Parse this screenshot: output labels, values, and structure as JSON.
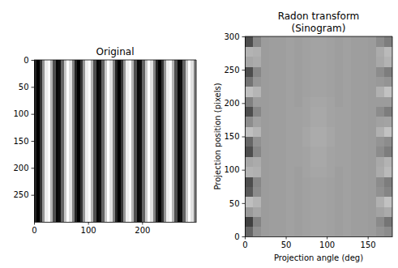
{
  "chart_data": [
    {
      "type": "heatmap",
      "title": "Original",
      "color": "gray",
      "zlim": [
        0,
        1
      ],
      "xlim": [
        0,
        300
      ],
      "ylim": [
        300,
        0
      ],
      "xticks": [
        0,
        100,
        200
      ],
      "yticks": [
        0,
        50,
        100,
        150,
        200,
        250
      ],
      "cells": [
        [
          0.14,
          0.0,
          0.2,
          0.59,
          0.93,
          0.98,
          0.71,
          0.31,
          0.03,
          0.06,
          0.39,
          0.79,
          1.0,
          0.88,
          0.51,
          0.14,
          0.0,
          0.2,
          0.59,
          0.93,
          0.98,
          0.71,
          0.31,
          0.03,
          0.06,
          0.39,
          0.79,
          1.0,
          0.88,
          0.51,
          0.14,
          0.0,
          0.2,
          0.59,
          0.93,
          0.98,
          0.71,
          0.31,
          0.03,
          0.06,
          0.39,
          0.79,
          1.0,
          0.88,
          0.51,
          0.14,
          0.0,
          0.2,
          0.59,
          0.93,
          0.98,
          0.71,
          0.31,
          0.03,
          0.06,
          0.39,
          0.79,
          1.0,
          0.88,
          0.51
        ]
      ]
    },
    {
      "type": "heatmap",
      "title": "Radon transform\n(Sinogram)",
      "color": "gray",
      "zlim": [
        0,
        1
      ],
      "xlabel": "Projection angle (deg)",
      "ylabel": "Projection position (pixels)",
      "xlim": [
        0,
        180
      ],
      "ylim": [
        0,
        300
      ],
      "xticks": [
        0,
        50,
        100,
        150
      ],
      "yticks": [
        0,
        50,
        100,
        150,
        200,
        250,
        300
      ],
      "cells": [
        [
          0.4,
          0.57,
          0.61,
          0.62,
          0.62,
          0.63,
          0.62,
          0.63,
          0.64,
          0.64,
          0.63,
          0.62,
          0.63,
          0.62,
          0.62,
          0.61,
          0.58,
          0.55
        ],
        [
          0.25,
          0.51,
          0.61,
          0.62,
          0.62,
          0.63,
          0.62,
          0.63,
          0.64,
          0.64,
          0.63,
          0.62,
          0.63,
          0.62,
          0.62,
          0.61,
          0.54,
          0.46
        ],
        [
          0.6,
          0.65,
          0.61,
          0.62,
          0.62,
          0.63,
          0.62,
          0.63,
          0.64,
          0.64,
          0.63,
          0.62,
          0.63,
          0.62,
          0.62,
          0.61,
          0.64,
          0.67
        ],
        [
          0.75,
          0.71,
          0.61,
          0.62,
          0.62,
          0.63,
          0.62,
          0.63,
          0.64,
          0.64,
          0.63,
          0.62,
          0.63,
          0.62,
          0.62,
          0.61,
          0.69,
          0.76
        ],
        [
          0.35,
          0.55,
          0.61,
          0.62,
          0.62,
          0.63,
          0.62,
          0.63,
          0.64,
          0.64,
          0.63,
          0.62,
          0.63,
          0.62,
          0.62,
          0.61,
          0.57,
          0.52
        ],
        [
          0.3,
          0.53,
          0.61,
          0.62,
          0.62,
          0.63,
          0.62,
          0.63,
          0.64,
          0.64,
          0.63,
          0.62,
          0.63,
          0.62,
          0.62,
          0.61,
          0.55,
          0.49
        ],
        [
          0.7,
          0.69,
          0.61,
          0.62,
          0.62,
          0.63,
          0.62,
          0.64,
          0.65,
          0.65,
          0.64,
          0.62,
          0.63,
          0.62,
          0.62,
          0.61,
          0.67,
          0.73
        ],
        [
          0.65,
          0.67,
          0.61,
          0.62,
          0.62,
          0.63,
          0.63,
          0.64,
          0.66,
          0.66,
          0.64,
          0.63,
          0.63,
          0.62,
          0.62,
          0.61,
          0.66,
          0.7
        ],
        [
          0.3,
          0.53,
          0.61,
          0.62,
          0.62,
          0.63,
          0.63,
          0.64,
          0.66,
          0.66,
          0.64,
          0.63,
          0.63,
          0.62,
          0.62,
          0.61,
          0.55,
          0.49
        ],
        [
          0.4,
          0.57,
          0.61,
          0.62,
          0.62,
          0.63,
          0.63,
          0.65,
          0.67,
          0.67,
          0.65,
          0.63,
          0.63,
          0.62,
          0.62,
          0.61,
          0.58,
          0.55
        ],
        [
          0.75,
          0.71,
          0.61,
          0.62,
          0.62,
          0.63,
          0.63,
          0.65,
          0.67,
          0.67,
          0.65,
          0.63,
          0.63,
          0.62,
          0.62,
          0.61,
          0.69,
          0.76
        ],
        [
          0.55,
          0.63,
          0.61,
          0.62,
          0.62,
          0.63,
          0.63,
          0.64,
          0.66,
          0.66,
          0.64,
          0.63,
          0.63,
          0.62,
          0.62,
          0.61,
          0.63,
          0.64
        ],
        [
          0.3,
          0.53,
          0.61,
          0.62,
          0.62,
          0.63,
          0.63,
          0.64,
          0.66,
          0.66,
          0.64,
          0.63,
          0.63,
          0.62,
          0.62,
          0.61,
          0.55,
          0.49
        ],
        [
          0.5,
          0.61,
          0.61,
          0.62,
          0.62,
          0.63,
          0.62,
          0.64,
          0.65,
          0.65,
          0.64,
          0.62,
          0.63,
          0.62,
          0.62,
          0.61,
          0.61,
          0.61
        ],
        [
          0.75,
          0.71,
          0.61,
          0.62,
          0.62,
          0.63,
          0.62,
          0.63,
          0.64,
          0.64,
          0.63,
          0.62,
          0.63,
          0.62,
          0.62,
          0.61,
          0.69,
          0.76
        ],
        [
          0.45,
          0.59,
          0.61,
          0.62,
          0.62,
          0.63,
          0.62,
          0.63,
          0.64,
          0.64,
          0.63,
          0.62,
          0.63,
          0.62,
          0.62,
          0.61,
          0.6,
          0.58
        ],
        [
          0.3,
          0.53,
          0.61,
          0.62,
          0.62,
          0.63,
          0.62,
          0.63,
          0.64,
          0.64,
          0.63,
          0.62,
          0.63,
          0.62,
          0.62,
          0.61,
          0.55,
          0.49
        ],
        [
          0.65,
          0.67,
          0.61,
          0.62,
          0.62,
          0.63,
          0.62,
          0.63,
          0.64,
          0.64,
          0.63,
          0.62,
          0.63,
          0.62,
          0.62,
          0.61,
          0.66,
          0.7
        ],
        [
          0.7,
          0.69,
          0.61,
          0.62,
          0.62,
          0.63,
          0.62,
          0.63,
          0.64,
          0.64,
          0.63,
          0.62,
          0.63,
          0.62,
          0.62,
          0.61,
          0.67,
          0.73
        ],
        [
          0.3,
          0.53,
          0.61,
          0.62,
          0.62,
          0.63,
          0.62,
          0.63,
          0.64,
          0.64,
          0.63,
          0.62,
          0.63,
          0.62,
          0.62,
          0.61,
          0.55,
          0.49
        ]
      ]
    }
  ]
}
